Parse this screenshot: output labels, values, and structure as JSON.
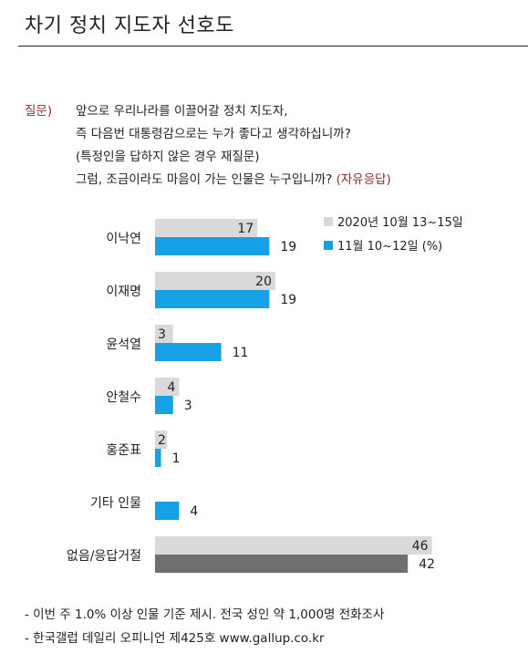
{
  "title": "차기 정치 지도자 선호도",
  "question": {
    "label": "질문)",
    "line1": "앞으로 우리나라를 이끌어갈 정치 지도자,",
    "line2": "즉 다음번 대통령감으로는 누가 좋다고 생각하십니까?",
    "line3": "(특정인을 답하지 않은 경우 재질문)",
    "line4": "그럼, 조금이라도 마음이 가는 인물은 누구입니까?",
    "line4_tag": "(자유응답)"
  },
  "chart_data": {
    "type": "bar",
    "orientation": "horizontal",
    "categories": [
      "이낙연",
      "이재명",
      "윤석열",
      "안철수",
      "홍준표",
      "기타 인물",
      "없음/응답거절"
    ],
    "series": [
      {
        "name": "2020년 10월 13~15일",
        "values": [
          17,
          20,
          3,
          4,
          2,
          null,
          46
        ],
        "color": "#d9d9d9"
      },
      {
        "name": "11월 10~12일 (%)",
        "values": [
          19,
          19,
          11,
          3,
          1,
          4,
          42
        ],
        "color": "#16a0e6"
      }
    ],
    "last_category_colors": [
      "#d9d9d9",
      "#6f6f6f"
    ],
    "legend_position": "top-right",
    "grid": false
  },
  "footer": {
    "line1": "- 이번 주 1.0% 이상 인물 기준 제시. 전국 성인 약 1,000명 전화조사",
    "line2": "- 한국갤럽 데일리 오피니언 제425호 www.gallup.co.kr"
  }
}
